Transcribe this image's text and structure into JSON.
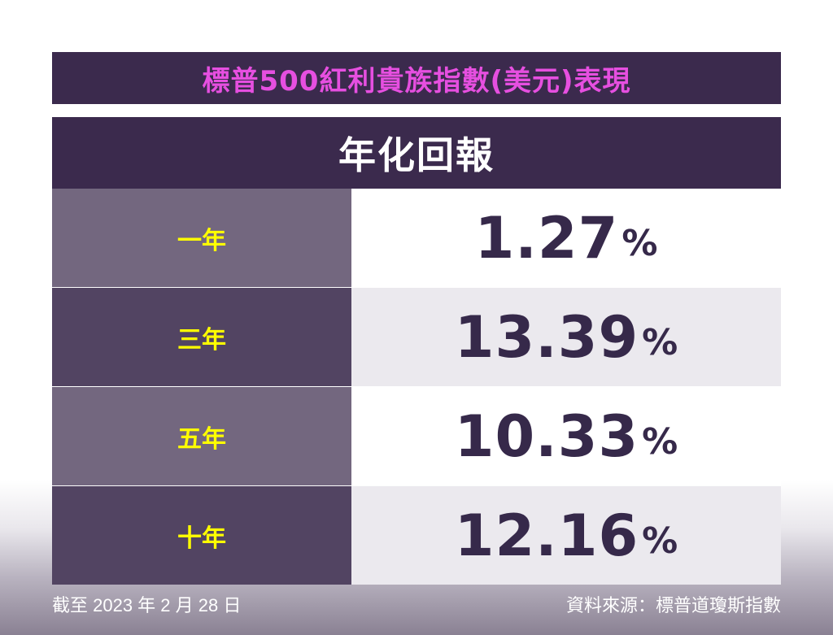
{
  "title": "標普500紅利貴族指數(美元)表現",
  "colors": {
    "title_bg": "#3b2a4d",
    "title_text": "#e64fe0",
    "header_bg": "#3b2a4d",
    "label_text": "#ffff00",
    "value_text": "#36294a",
    "label_bg_light": "#73677f",
    "label_bg_dark": "#524462",
    "value_bg_light": "#ffffff",
    "value_bg_dark": "#ebe9ee"
  },
  "chart_data": {
    "type": "table",
    "title": "標普500紅利貴族指數(美元)表現",
    "header": "年化回報",
    "unit": "%",
    "categories": [
      "一年",
      "三年",
      "五年",
      "十年"
    ],
    "values": [
      1.27,
      13.39,
      10.33,
      12.16
    ],
    "display_values": [
      "1.27",
      "13.39",
      "10.33",
      "12.16"
    ]
  },
  "footer": {
    "date_note": "截至 2023 年 2 月 28 日",
    "source": "資料來源：標普道瓊斯指數"
  }
}
